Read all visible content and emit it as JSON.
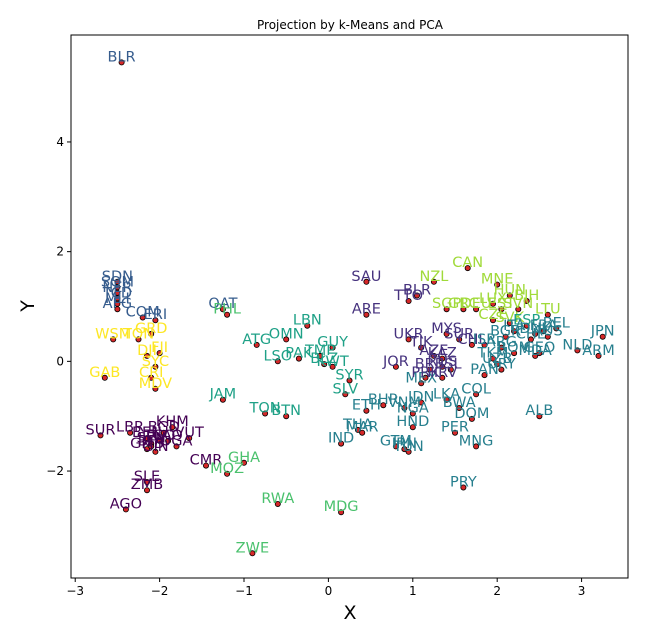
{
  "chart_data": {
    "type": "scatter",
    "title": "Projection by k-Means and PCA",
    "xlabel": "X",
    "ylabel": "Y",
    "xlim": [
      -3.05,
      3.55
    ],
    "ylim": [
      -3.95,
      5.95
    ],
    "xticks": [
      -3,
      -2,
      -1,
      0,
      1,
      2,
      3
    ],
    "yticks": [
      -2,
      0,
      2,
      4
    ],
    "xtick_labels": [
      "−3",
      "−2",
      "−1",
      "0",
      "1",
      "2",
      "3"
    ],
    "ytick_labels": [
      "−2",
      "0",
      "2",
      "4"
    ],
    "grid": false,
    "cluster_colors": [
      "#440154",
      "#46327e",
      "#365c8d",
      "#277f8e",
      "#1fa187",
      "#4ac16d",
      "#a0da39",
      "#fde725"
    ],
    "points": [
      {
        "label": "BLR",
        "x": -2.45,
        "y": 5.45,
        "cluster": 2
      },
      {
        "label": "SDN",
        "x": -2.5,
        "y": 1.45,
        "cluster": 2
      },
      {
        "label": "SOM",
        "x": -2.5,
        "y": 1.35,
        "cluster": 2
      },
      {
        "label": "NER",
        "x": -2.5,
        "y": 1.25,
        "cluster": 2
      },
      {
        "label": "TCD",
        "x": -2.5,
        "y": 1.15,
        "cluster": 2
      },
      {
        "label": "MLI",
        "x": -2.5,
        "y": 1.05,
        "cluster": 2
      },
      {
        "label": "AFG",
        "x": -2.5,
        "y": 0.95,
        "cluster": 2
      },
      {
        "label": "COM",
        "x": -2.2,
        "y": 0.8,
        "cluster": 2
      },
      {
        "label": "ERI",
        "x": -2.05,
        "y": 0.75,
        "cluster": 2
      },
      {
        "label": "QAT",
        "x": -1.25,
        "y": 0.95,
        "cluster": 2
      },
      {
        "label": "PHL",
        "x": -1.2,
        "y": 0.85,
        "cluster": 5
      },
      {
        "label": "WSM",
        "x": -2.55,
        "y": 0.4,
        "cluster": 7
      },
      {
        "label": "TON",
        "x": -2.25,
        "y": 0.4,
        "cluster": 7
      },
      {
        "label": "GRD",
        "x": -2.1,
        "y": 0.5,
        "cluster": 7
      },
      {
        "label": "DJI",
        "x": -2.15,
        "y": 0.1,
        "cluster": 7
      },
      {
        "label": "FJI",
        "x": -2.0,
        "y": 0.15,
        "cluster": 7
      },
      {
        "label": "SYC",
        "x": -2.05,
        "y": -0.1,
        "cluster": 7
      },
      {
        "label": "GAB",
        "x": -2.65,
        "y": -0.3,
        "cluster": 7
      },
      {
        "label": "CRI",
        "x": -2.1,
        "y": -0.3,
        "cluster": 7
      },
      {
        "label": "MDV",
        "x": -2.05,
        "y": -0.5,
        "cluster": 7
      },
      {
        "label": "SUR",
        "x": -2.7,
        "y": -1.35,
        "cluster": 0
      },
      {
        "label": "LBR",
        "x": -2.35,
        "y": -1.3,
        "cluster": 0
      },
      {
        "label": "BEN",
        "x": -2.15,
        "y": -1.4,
        "cluster": 0
      },
      {
        "label": "SEN",
        "x": -2.1,
        "y": -1.5,
        "cluster": 0
      },
      {
        "label": "GMB",
        "x": -2.15,
        "y": -1.6,
        "cluster": 0
      },
      {
        "label": "GIN",
        "x": -2.05,
        "y": -1.65,
        "cluster": 0
      },
      {
        "label": "BFA",
        "x": -2.1,
        "y": -1.55,
        "cluster": 0
      },
      {
        "label": "KHM",
        "x": -1.85,
        "y": -1.2,
        "cluster": 0
      },
      {
        "label": "BGD",
        "x": -1.95,
        "y": -1.3,
        "cluster": 0
      },
      {
        "label": "LAO",
        "x": -1.9,
        "y": -1.45,
        "cluster": 0
      },
      {
        "label": "TGO",
        "x": -2.0,
        "y": -1.45,
        "cluster": 0
      },
      {
        "label": "UGA",
        "x": -1.8,
        "y": -1.55,
        "cluster": 0
      },
      {
        "label": "VUT",
        "x": -1.65,
        "y": -1.4,
        "cluster": 0
      },
      {
        "label": "CMR",
        "x": -1.45,
        "y": -1.9,
        "cluster": 0
      },
      {
        "label": "SLE",
        "x": -2.15,
        "y": -2.2,
        "cluster": 0
      },
      {
        "label": "ZMB",
        "x": -2.15,
        "y": -2.35,
        "cluster": 0
      },
      {
        "label": "AGO",
        "x": -2.4,
        "y": -2.7,
        "cluster": 0
      },
      {
        "label": "JAM",
        "x": -1.25,
        "y": -0.7,
        "cluster": 4
      },
      {
        "label": "GHA",
        "x": -1.0,
        "y": -1.85,
        "cluster": 5
      },
      {
        "label": "MOZ",
        "x": -1.2,
        "y": -2.05,
        "cluster": 5
      },
      {
        "label": "RWA",
        "x": -0.6,
        "y": -2.6,
        "cluster": 5
      },
      {
        "label": "ZWE",
        "x": -0.9,
        "y": -3.5,
        "cluster": 5
      },
      {
        "label": "MDG",
        "x": 0.15,
        "y": -2.75,
        "cluster": 5
      },
      {
        "label": "ATG",
        "x": -0.85,
        "y": 0.3,
        "cluster": 4
      },
      {
        "label": "OMN",
        "x": -0.5,
        "y": 0.4,
        "cluster": 4
      },
      {
        "label": "LBN",
        "x": -0.25,
        "y": 0.65,
        "cluster": 4
      },
      {
        "label": "LSO",
        "x": -0.6,
        "y": 0.0,
        "cluster": 4
      },
      {
        "label": "PAK",
        "x": -0.35,
        "y": 0.05,
        "cluster": 4
      },
      {
        "label": "TMP",
        "x": -0.1,
        "y": 0.1,
        "cluster": 4
      },
      {
        "label": "GUY",
        "x": 0.05,
        "y": 0.25,
        "cluster": 4
      },
      {
        "label": "BLZ",
        "x": -0.05,
        "y": -0.05,
        "cluster": 4
      },
      {
        "label": "KWT",
        "x": 0.05,
        "y": -0.1,
        "cluster": 4
      },
      {
        "label": "TON",
        "x": -0.75,
        "y": -0.95,
        "cluster": 4
      },
      {
        "label": "BTN",
        "x": -0.5,
        "y": -1.0,
        "cluster": 4
      },
      {
        "label": "SYR",
        "x": 0.25,
        "y": -0.35,
        "cluster": 4
      },
      {
        "label": "SLV",
        "x": 0.2,
        "y": -0.6,
        "cluster": 4
      },
      {
        "label": "ETH",
        "x": 0.45,
        "y": -0.9,
        "cluster": 3
      },
      {
        "label": "BHR",
        "x": 0.65,
        "y": -0.8,
        "cluster": 3
      },
      {
        "label": "THA",
        "x": 0.35,
        "y": -1.25,
        "cluster": 3
      },
      {
        "label": "MAR",
        "x": 0.4,
        "y": -1.3,
        "cluster": 3
      },
      {
        "label": "IND",
        "x": 0.15,
        "y": -1.5,
        "cluster": 3
      },
      {
        "label": "GTM",
        "x": 0.8,
        "y": -1.55,
        "cluster": 3
      },
      {
        "label": "IRN",
        "x": 0.9,
        "y": -1.6,
        "cluster": 3
      },
      {
        "label": "TUN",
        "x": 0.95,
        "y": -1.65,
        "cluster": 3
      },
      {
        "label": "HND",
        "x": 1.0,
        "y": -1.2,
        "cluster": 3
      },
      {
        "label": "NGA",
        "x": 1.0,
        "y": -0.95,
        "cluster": 3
      },
      {
        "label": "VNM",
        "x": 0.9,
        "y": -0.85,
        "cluster": 3
      },
      {
        "label": "IDN",
        "x": 1.1,
        "y": -0.75,
        "cluster": 3
      },
      {
        "label": "MEX",
        "x": 1.1,
        "y": -0.4,
        "cluster": 3
      },
      {
        "label": "PER",
        "x": 1.5,
        "y": -1.3,
        "cluster": 3
      },
      {
        "label": "MNG",
        "x": 1.75,
        "y": -1.55,
        "cluster": 3
      },
      {
        "label": "DOM",
        "x": 1.7,
        "y": -1.05,
        "cluster": 3
      },
      {
        "label": "BWA",
        "x": 1.55,
        "y": -0.85,
        "cluster": 3
      },
      {
        "label": "LKA",
        "x": 1.4,
        "y": -0.7,
        "cluster": 3
      },
      {
        "label": "COL",
        "x": 1.75,
        "y": -0.6,
        "cluster": 3
      },
      {
        "label": "PAN",
        "x": 1.85,
        "y": -0.25,
        "cluster": 3
      },
      {
        "label": "URY",
        "x": 2.05,
        "y": -0.15,
        "cluster": 3
      },
      {
        "label": "ALB",
        "x": 2.5,
        "y": -1.0,
        "cluster": 3
      },
      {
        "label": "PRY",
        "x": 1.6,
        "y": -2.3,
        "cluster": 3
      },
      {
        "label": "SAU",
        "x": 0.45,
        "y": 1.45,
        "cluster": 1
      },
      {
        "label": "ARE",
        "x": 0.45,
        "y": 0.85,
        "cluster": 1
      },
      {
        "label": "TTO",
        "x": 0.95,
        "y": 1.1,
        "cluster": 1
      },
      {
        "label": "BLR",
        "x": 1.05,
        "y": 1.2,
        "cluster": 1
      },
      {
        "label": "UKR",
        "x": 0.95,
        "y": 0.4,
        "cluster": 1
      },
      {
        "label": "JOR",
        "x": 0.8,
        "y": -0.1,
        "cluster": 1
      },
      {
        "label": "TJK",
        "x": 1.1,
        "y": 0.25,
        "cluster": 1
      },
      {
        "label": "MYS",
        "x": 1.4,
        "y": 0.5,
        "cluster": 1
      },
      {
        "label": "SUR",
        "x": 1.55,
        "y": 0.4,
        "cluster": 1
      },
      {
        "label": "AZE",
        "x": 1.25,
        "y": 0.1,
        "cluster": 1
      },
      {
        "label": "KAZ",
        "x": 1.35,
        "y": 0.05,
        "cluster": 1
      },
      {
        "label": "RUS",
        "x": 1.35,
        "y": -0.1,
        "cluster": 1
      },
      {
        "label": "BRB",
        "x": 1.2,
        "y": -0.15,
        "cluster": 1
      },
      {
        "label": "PRK",
        "x": 1.15,
        "y": -0.3,
        "cluster": 1
      },
      {
        "label": "HRV",
        "x": 1.35,
        "y": -0.3,
        "cluster": 1
      },
      {
        "label": "ISL",
        "x": 1.45,
        "y": -0.15,
        "cluster": 1
      },
      {
        "label": "CHL",
        "x": 1.7,
        "y": 0.3,
        "cluster": 1
      },
      {
        "label": "NZL",
        "x": 1.25,
        "y": 1.45,
        "cluster": 6
      },
      {
        "label": "CAN",
        "x": 1.65,
        "y": 1.7,
        "cluster": 6
      },
      {
        "label": "MNE",
        "x": 2.0,
        "y": 1.4,
        "cluster": 6
      },
      {
        "label": "HUN",
        "x": 2.15,
        "y": 1.2,
        "cluster": 6
      },
      {
        "label": "BIH",
        "x": 2.35,
        "y": 1.1,
        "cluster": 6
      },
      {
        "label": "SGP",
        "x": 1.4,
        "y": 0.95,
        "cluster": 6
      },
      {
        "label": "GRC",
        "x": 1.6,
        "y": 0.95,
        "cluster": 6
      },
      {
        "label": "DEU",
        "x": 1.75,
        "y": 0.95,
        "cluster": 6
      },
      {
        "label": "LUX",
        "x": 1.95,
        "y": 1.05,
        "cluster": 6
      },
      {
        "label": "EST",
        "x": 2.05,
        "y": 0.95,
        "cluster": 6
      },
      {
        "label": "SVN",
        "x": 2.25,
        "y": 0.95,
        "cluster": 6
      },
      {
        "label": "LTU",
        "x": 2.6,
        "y": 0.85,
        "cluster": 6
      },
      {
        "label": "CZE",
        "x": 1.95,
        "y": 0.75,
        "cluster": 6
      },
      {
        "label": "SVK",
        "x": 2.15,
        "y": 0.7,
        "cluster": 6
      },
      {
        "label": "ESP",
        "x": 2.35,
        "y": 0.65,
        "cluster": 4
      },
      {
        "label": "ITA",
        "x": 2.2,
        "y": 0.55,
        "cluster": 3
      },
      {
        "label": "FRA",
        "x": 2.55,
        "y": 0.55,
        "cluster": 3
      },
      {
        "label": "BEL",
        "x": 2.7,
        "y": 0.6,
        "cluster": 3
      },
      {
        "label": "BGR",
        "x": 2.1,
        "y": 0.45,
        "cluster": 3
      },
      {
        "label": "CHE",
        "x": 2.4,
        "y": 0.4,
        "cluster": 3
      },
      {
        "label": "DNK",
        "x": 2.45,
        "y": 0.5,
        "cluster": 3
      },
      {
        "label": "AUS",
        "x": 2.6,
        "y": 0.45,
        "cluster": 3
      },
      {
        "label": "JPN",
        "x": 3.25,
        "y": 0.45,
        "cluster": 3
      },
      {
        "label": "NLD",
        "x": 2.95,
        "y": 0.2,
        "cluster": 3
      },
      {
        "label": "ARM",
        "x": 3.2,
        "y": 0.1,
        "cluster": 3
      },
      {
        "label": "ROM",
        "x": 2.2,
        "y": 0.15,
        "cluster": 3
      },
      {
        "label": "MDA",
        "x": 2.45,
        "y": 0.1,
        "cluster": 3
      },
      {
        "label": "GEO",
        "x": 2.5,
        "y": 0.15,
        "cluster": 3
      },
      {
        "label": "ARG",
        "x": 2.05,
        "y": 0.25,
        "cluster": 3
      },
      {
        "label": "ISR",
        "x": 1.85,
        "y": 0.3,
        "cluster": 3
      },
      {
        "label": "TKM",
        "x": 1.95,
        "y": 0.05,
        "cluster": 3
      },
      {
        "label": "UZB",
        "x": 2.0,
        "y": -0.05,
        "cluster": 3
      }
    ]
  }
}
